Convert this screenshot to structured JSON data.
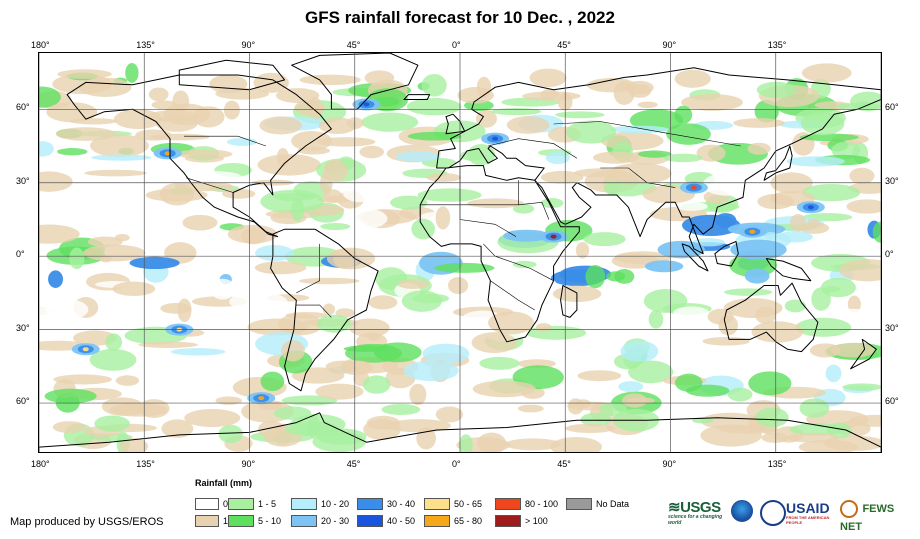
{
  "title": "GFS rainfall forecast for 10 Dec. , 2022",
  "axes": {
    "lon_ticks": [
      "180°",
      "135°",
      "90°",
      "45°",
      "0°",
      "45°",
      "90°",
      "135°"
    ],
    "lon_tick_values": [
      -180,
      -135,
      -90,
      -45,
      0,
      45,
      90,
      135
    ],
    "lat_ticks_left": [
      "60°",
      "30°",
      "0°",
      "30°",
      "60°"
    ],
    "lat_ticks_right": [
      "60°",
      "30°",
      "0°",
      "30°",
      "60°"
    ],
    "lat_tick_values": [
      60,
      30,
      0,
      -30,
      -60
    ],
    "lon_range": [
      -180,
      180
    ],
    "lat_range": [
      -80,
      83
    ],
    "grid": true
  },
  "legend": {
    "title": "Rainfall (mm)",
    "items": [
      {
        "label": "0",
        "color": "#ffffff"
      },
      {
        "label": "1",
        "color": "#e8d2b0"
      },
      {
        "label": "1 - 5",
        "color": "#a8f0a0"
      },
      {
        "label": "5 - 10",
        "color": "#5ee05e"
      },
      {
        "label": "10 - 20",
        "color": "#b4eefa"
      },
      {
        "label": "20 - 30",
        "color": "#7cc4f4"
      },
      {
        "label": "30 - 40",
        "color": "#3a8de8"
      },
      {
        "label": "40 - 50",
        "color": "#1a55e0"
      },
      {
        "label": "50 - 65",
        "color": "#fde08a"
      },
      {
        "label": "65 - 80",
        "color": "#f5a81a"
      },
      {
        "label": "80 - 100",
        "color": "#f0461e"
      },
      {
        "label": "> 100",
        "color": "#a01c1c"
      },
      {
        "label": "No Data",
        "color": "#9a9a9a"
      }
    ]
  },
  "credit": "Map produced by USGS/EROS",
  "logos": {
    "usgs": "USGS",
    "usgs_tagline": "science for a changing world",
    "usaid": "USAID",
    "usaid_tagline": "FROM THE AMERICAN PEOPLE",
    "fews": "FEWS NET"
  }
}
